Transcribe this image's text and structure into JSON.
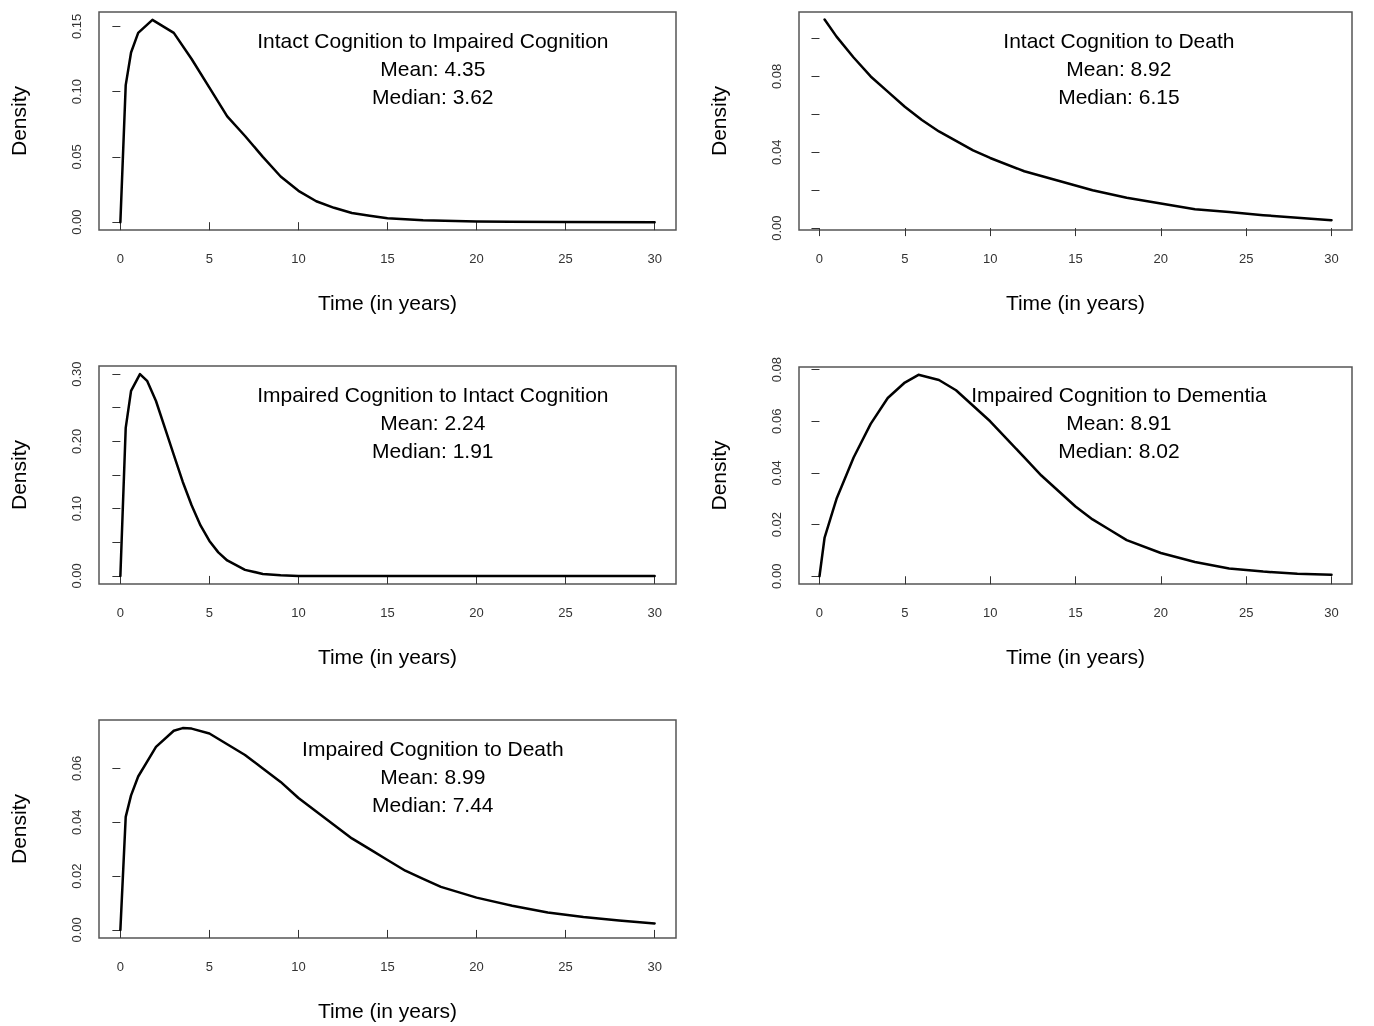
{
  "chart_data": [
    {
      "type": "line",
      "xlabel": "Time (in years)",
      "ylabel": "Density",
      "annotations": [
        "Intact Cognition to Impaired Cognition",
        "Mean: 4.35",
        "Median: 3.62"
      ],
      "xlim": [
        -1.2,
        31.2
      ],
      "xticks": [
        0,
        5,
        10,
        15,
        20,
        25,
        30
      ],
      "ylim": [
        -0.006,
        0.161
      ],
      "yticks": [
        {
          "value": 0,
          "label": "0.00"
        },
        {
          "value": 0.05,
          "label": "0.05"
        },
        {
          "value": 0.1,
          "label": "0.10"
        },
        {
          "value": 0.15,
          "label": "0.15"
        }
      ],
      "series": [
        {
          "color": "#000000",
          "x": [
            0,
            0.3,
            0.6,
            1,
            1.8,
            3,
            4,
            5,
            6,
            7,
            8,
            9,
            10,
            11,
            12,
            13,
            14,
            15,
            17,
            20,
            25,
            30
          ],
          "values": [
            0,
            0.105,
            0.13,
            0.145,
            0.155,
            0.145,
            0.125,
            0.103,
            0.081,
            0.066,
            0.05,
            0.035,
            0.024,
            0.016,
            0.011,
            0.007,
            0.005,
            0.003,
            0.0015,
            0.0005,
            0.0001,
            0
          ]
        }
      ]
    },
    {
      "type": "line",
      "xlabel": "Time (in years)",
      "ylabel": "Density",
      "annotations": [
        "Intact Cognition to Death",
        "Mean: 8.92",
        "Median: 6.15"
      ],
      "xlim": [
        -1.2,
        31.2
      ],
      "xticks": [
        0,
        5,
        10,
        15,
        20,
        25,
        30
      ],
      "ylim": [
        -0.001,
        0.114
      ],
      "yticks": [
        {
          "value": 0,
          "label": "0.00"
        },
        {
          "value": 0.02,
          "label": null
        },
        {
          "value": 0.04,
          "label": "0.04"
        },
        {
          "value": 0.06,
          "label": null
        },
        {
          "value": 0.08,
          "label": "0.08"
        },
        {
          "value": 0.1,
          "label": null
        }
      ],
      "series": [
        {
          "color": "#000000",
          "x": [
            0.3,
            1,
            2,
            3,
            4,
            5,
            6,
            7,
            8,
            9,
            10,
            12,
            14,
            16,
            18,
            20,
            22,
            24,
            26,
            28,
            30
          ],
          "values": [
            0.11,
            0.101,
            0.09,
            0.08,
            0.072,
            0.064,
            0.057,
            0.051,
            0.046,
            0.041,
            0.037,
            0.03,
            0.025,
            0.02,
            0.016,
            0.013,
            0.01,
            0.0085,
            0.0068,
            0.0055,
            0.0042
          ]
        }
      ]
    },
    {
      "type": "line",
      "xlabel": "Time (in years)",
      "ylabel": "Density",
      "annotations": [
        "Impaired Cognition to Intact Cognition",
        "Mean: 2.24",
        "Median: 1.91"
      ],
      "xlim": [
        -1.2,
        31.2
      ],
      "xticks": [
        0,
        5,
        10,
        15,
        20,
        25,
        30
      ],
      "ylim": [
        -0.012,
        0.312
      ],
      "yticks": [
        {
          "value": 0,
          "label": "0.00"
        },
        {
          "value": 0.05,
          "label": null
        },
        {
          "value": 0.1,
          "label": "0.10"
        },
        {
          "value": 0.15,
          "label": null
        },
        {
          "value": 0.2,
          "label": "0.20"
        },
        {
          "value": 0.25,
          "label": null
        },
        {
          "value": 0.3,
          "label": "0.30"
        }
      ],
      "series": [
        {
          "color": "#000000",
          "x": [
            0,
            0.3,
            0.6,
            1.1,
            1.5,
            2,
            2.5,
            3,
            3.5,
            4,
            4.5,
            5,
            5.5,
            6,
            7,
            8,
            9,
            10,
            15,
            20,
            25,
            30
          ],
          "values": [
            0,
            0.22,
            0.275,
            0.3,
            0.29,
            0.26,
            0.22,
            0.18,
            0.14,
            0.105,
            0.075,
            0.052,
            0.035,
            0.023,
            0.009,
            0.003,
            0.001,
            0,
            0,
            0,
            0,
            0
          ]
        }
      ]
    },
    {
      "type": "line",
      "xlabel": "Time (in years)",
      "ylabel": "Density",
      "annotations": [
        "Impaired Cognition to Dementia",
        "Mean: 8.91",
        "Median: 8.02"
      ],
      "xlim": [
        -1.2,
        31.2
      ],
      "xticks": [
        0,
        5,
        10,
        15,
        20,
        25,
        30
      ],
      "ylim": [
        -0.003,
        0.081
      ],
      "yticks": [
        {
          "value": 0,
          "label": "0.00"
        },
        {
          "value": 0.02,
          "label": "0.02"
        },
        {
          "value": 0.04,
          "label": "0.04"
        },
        {
          "value": 0.06,
          "label": "0.06"
        },
        {
          "value": 0.08,
          "label": "0.08"
        }
      ],
      "series": [
        {
          "color": "#000000",
          "x": [
            0,
            0.3,
            1,
            2,
            3,
            4,
            5,
            5.8,
            7,
            8,
            9,
            10,
            11,
            12,
            13,
            14,
            15,
            16,
            17,
            18,
            20,
            22,
            24,
            26,
            28,
            30
          ],
          "values": [
            0,
            0.015,
            0.03,
            0.046,
            0.059,
            0.069,
            0.075,
            0.078,
            0.076,
            0.072,
            0.066,
            0.06,
            0.053,
            0.046,
            0.039,
            0.033,
            0.027,
            0.022,
            0.018,
            0.014,
            0.009,
            0.0055,
            0.003,
            0.0018,
            0.001,
            0.0006
          ]
        }
      ]
    },
    {
      "type": "line",
      "xlabel": "Time (in years)",
      "ylabel": "Density",
      "annotations": [
        "Impaired Cognition to Death",
        "Mean: 8.99",
        "Median: 7.44"
      ],
      "xlim": [
        -1.2,
        31.2
      ],
      "xticks": [
        0,
        5,
        10,
        15,
        20,
        25,
        30
      ],
      "ylim": [
        -0.003,
        0.078
      ],
      "yticks": [
        {
          "value": 0,
          "label": "0.00"
        },
        {
          "value": 0.02,
          "label": "0.02"
        },
        {
          "value": 0.04,
          "label": "0.04"
        },
        {
          "value": 0.06,
          "label": "0.06"
        }
      ],
      "series": [
        {
          "color": "#000000",
          "x": [
            0,
            0.3,
            0.6,
            1,
            2,
            3,
            3.5,
            4,
            5,
            6,
            7,
            8,
            9,
            10,
            11,
            12,
            13,
            14,
            15,
            16,
            17,
            18,
            20,
            22,
            24,
            26,
            28,
            30
          ],
          "values": [
            0,
            0.042,
            0.05,
            0.057,
            0.068,
            0.074,
            0.075,
            0.0748,
            0.073,
            0.069,
            0.065,
            0.06,
            0.055,
            0.049,
            0.044,
            0.039,
            0.034,
            0.03,
            0.026,
            0.022,
            0.019,
            0.016,
            0.012,
            0.009,
            0.0065,
            0.0048,
            0.0035,
            0.0024
          ]
        }
      ]
    }
  ]
}
